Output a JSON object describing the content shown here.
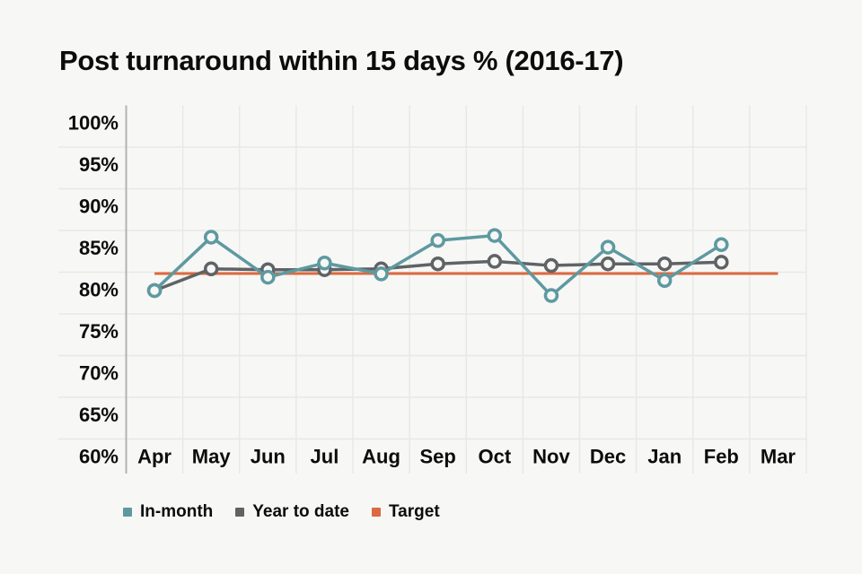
{
  "page": {
    "background_color": "#F7F7F5",
    "text_color": "#0B0C0C"
  },
  "chart_data": {
    "type": "line",
    "title": "Post turnaround within 15 days % (2016-17)",
    "categories": [
      "Apr",
      "May",
      "Jun",
      "Jul",
      "Aug",
      "Sep",
      "Oct",
      "Nov",
      "Dec",
      "Jan",
      "Feb",
      "Mar"
    ],
    "y_axis": {
      "min": 60,
      "max": 100,
      "step": 5,
      "unit": "%",
      "tick_labels": [
        "100%",
        "95%",
        "90%",
        "85%",
        "80%",
        "75%",
        "70%",
        "65%",
        "60%"
      ]
    },
    "x_axis": {
      "tick_labels": [
        "Apr",
        "May",
        "Jun",
        "Jul",
        "Aug",
        "Sep",
        "Oct",
        "Nov",
        "Dec",
        "Jan",
        "Feb",
        "Mar"
      ]
    },
    "grid": true,
    "legend_position": "bottom",
    "series": [
      {
        "name": "In-month",
        "color": "#5E99A0",
        "marker": "open-circle",
        "values": [
          77.8,
          84.2,
          79.4,
          81.1,
          79.8,
          83.8,
          84.4,
          77.2,
          83.0,
          79.0,
          83.3,
          null
        ]
      },
      {
        "name": "Year to date",
        "color": "#5F6366",
        "marker": "open-circle",
        "values": [
          77.8,
          80.4,
          80.3,
          80.3,
          80.4,
          81.0,
          81.3,
          80.8,
          81.0,
          81.0,
          81.2,
          null
        ]
      }
    ],
    "target": {
      "name": "Target",
      "value": 80,
      "color": "#DD693E"
    },
    "grid_color": "#E8E8E4",
    "axis_line_color": "#B3B3B0"
  }
}
